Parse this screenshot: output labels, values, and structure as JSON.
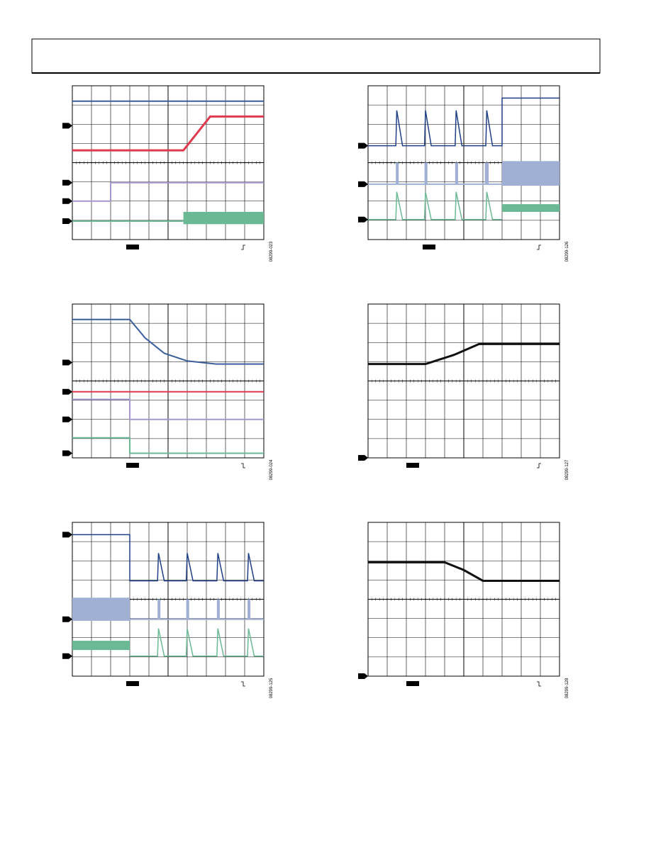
{
  "figures": [
    {
      "id": "08299-023"
    },
    {
      "id": "08299-126"
    },
    {
      "id": "08299-024"
    },
    {
      "id": "08299-127"
    },
    {
      "id": "08299-125"
    },
    {
      "id": "08299-128"
    }
  ]
}
